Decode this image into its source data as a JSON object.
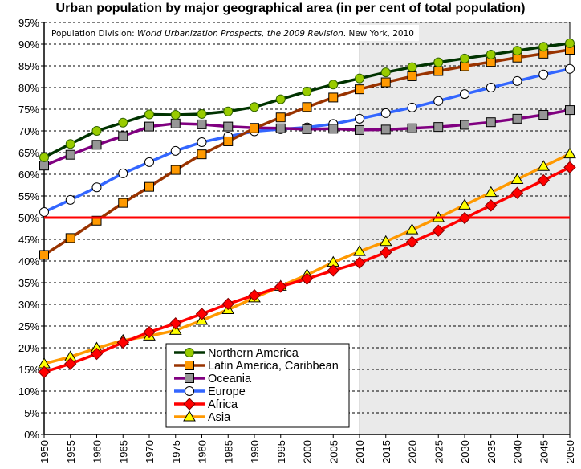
{
  "chart_data": {
    "type": "line",
    "title": "Urban population by major geographical area (in per cent of total population)",
    "source_note": {
      "prefix": "Population Division: ",
      "italic": "World Urbanization Prospects, the 2009 Revision",
      "suffix": ". New York, 2010"
    },
    "xlabel": "",
    "ylabel": "",
    "ylim": [
      0,
      95
    ],
    "y_step": 5,
    "y_tick_suffix": "%",
    "xlim": [
      1950,
      2050
    ],
    "grid": true,
    "projection_shading_from": 2010,
    "reference_line": {
      "value": 50,
      "color": "#ff0000"
    },
    "legend_position": "bottom-center",
    "x": [
      1950,
      1955,
      1960,
      1965,
      1970,
      1975,
      1980,
      1985,
      1990,
      1995,
      2000,
      2005,
      2010,
      2015,
      2020,
      2025,
      2030,
      2035,
      2040,
      2045,
      2050
    ],
    "series": [
      {
        "name": "Northern America",
        "color": "#003300",
        "marker": "circle",
        "marker_fill": "#99cc00",
        "values": [
          63.9,
          67.0,
          70.0,
          71.9,
          73.8,
          73.7,
          73.9,
          74.5,
          75.5,
          77.3,
          79.1,
          80.7,
          82.1,
          83.5,
          84.7,
          85.8,
          86.7,
          87.6,
          88.5,
          89.4,
          90.2
        ]
      },
      {
        "name": "Latin America, Caribbean",
        "color": "#993300",
        "marker": "square",
        "marker_fill": "#ff9900",
        "values": [
          41.4,
          45.3,
          49.3,
          53.4,
          57.1,
          61.0,
          64.6,
          67.6,
          70.6,
          73.1,
          75.5,
          77.7,
          79.6,
          81.2,
          82.6,
          83.8,
          84.9,
          85.9,
          86.9,
          87.8,
          88.7
        ]
      },
      {
        "name": "Oceania",
        "color": "#800080",
        "marker": "square",
        "marker_fill": "#969696",
        "values": [
          62.0,
          64.5,
          66.8,
          68.8,
          71.0,
          71.7,
          71.5,
          71.0,
          70.7,
          70.6,
          70.4,
          70.5,
          70.2,
          70.3,
          70.6,
          70.9,
          71.4,
          72.0,
          72.8,
          73.7,
          74.8
        ]
      },
      {
        "name": "Europe",
        "color": "#3366ff",
        "marker": "circle",
        "marker_fill": "#ffffff",
        "values": [
          51.3,
          54.1,
          57.0,
          60.2,
          62.8,
          65.4,
          67.4,
          68.7,
          69.9,
          70.4,
          70.8,
          71.6,
          72.8,
          74.1,
          75.4,
          76.9,
          78.5,
          80.0,
          81.5,
          83.0,
          84.3
        ]
      },
      {
        "name": "Africa",
        "color": "#ff0000",
        "marker": "diamond",
        "marker_fill": "#ff0000",
        "values": [
          14.4,
          16.3,
          18.6,
          21.2,
          23.6,
          25.6,
          27.8,
          30.1,
          32.1,
          34.1,
          35.9,
          37.8,
          39.6,
          42.0,
          44.4,
          47.0,
          49.9,
          52.8,
          55.7,
          58.6,
          61.6
        ]
      },
      {
        "name": "Asia",
        "color": "#ff9900",
        "marker": "triangle",
        "marker_fill": "#ffff00",
        "values": [
          16.3,
          17.9,
          19.9,
          21.7,
          22.7,
          24.0,
          26.3,
          28.8,
          31.5,
          34.2,
          36.8,
          39.7,
          42.2,
          44.5,
          47.2,
          50.0,
          52.9,
          55.8,
          58.8,
          61.8,
          64.7
        ]
      }
    ]
  }
}
